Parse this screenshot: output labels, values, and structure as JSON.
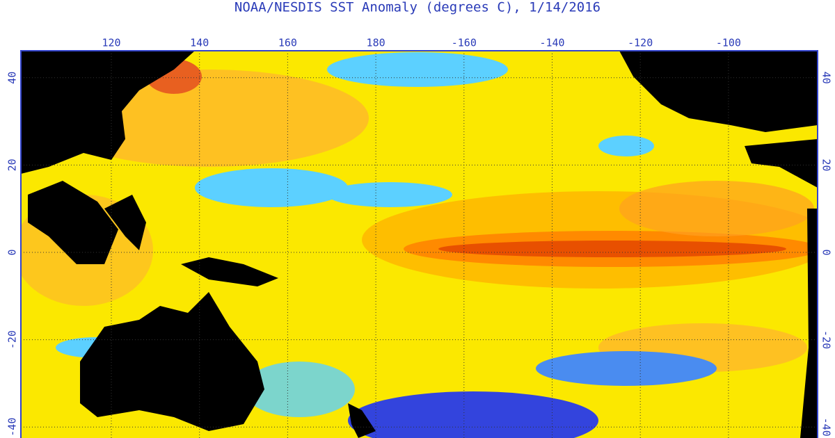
{
  "title": "NOAA/NESDIS SST Anomaly (degrees C), 1/14/2016",
  "lon_ticks": [
    120,
    140,
    160,
    180,
    -160,
    -140,
    -120,
    -100
  ],
  "lat_ticks": [
    40,
    20,
    0,
    -20,
    -40
  ]
}
